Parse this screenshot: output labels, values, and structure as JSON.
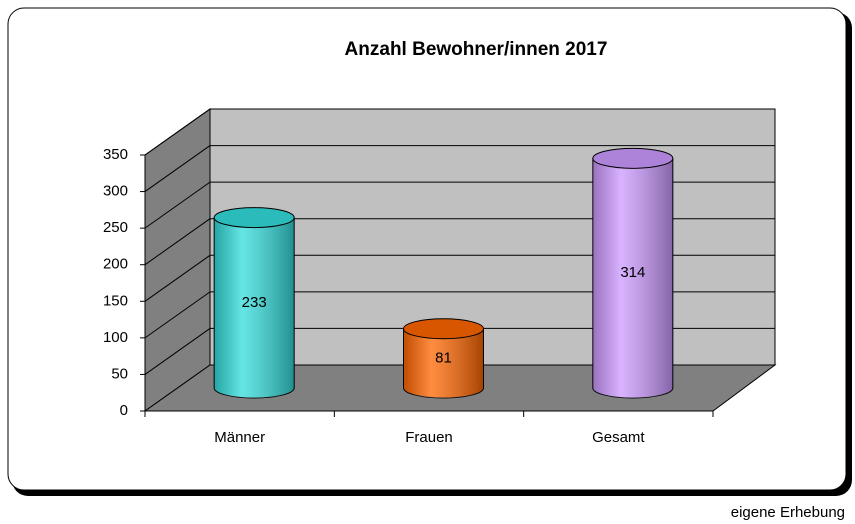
{
  "chart_data": {
    "type": "bar3d",
    "title": "Anzahl Bewohner/innen 2017",
    "categories": [
      "Männer",
      "Frauen",
      "Gesamt"
    ],
    "values": [
      233,
      81,
      314
    ],
    "colors": [
      "#33dcdc",
      "#ff6600",
      "#cc99ff"
    ],
    "ylim": [
      0,
      350
    ],
    "yticks": [
      0,
      50,
      100,
      150,
      200,
      250,
      300,
      350
    ],
    "grid": true,
    "source": "eigene Erhebung"
  }
}
